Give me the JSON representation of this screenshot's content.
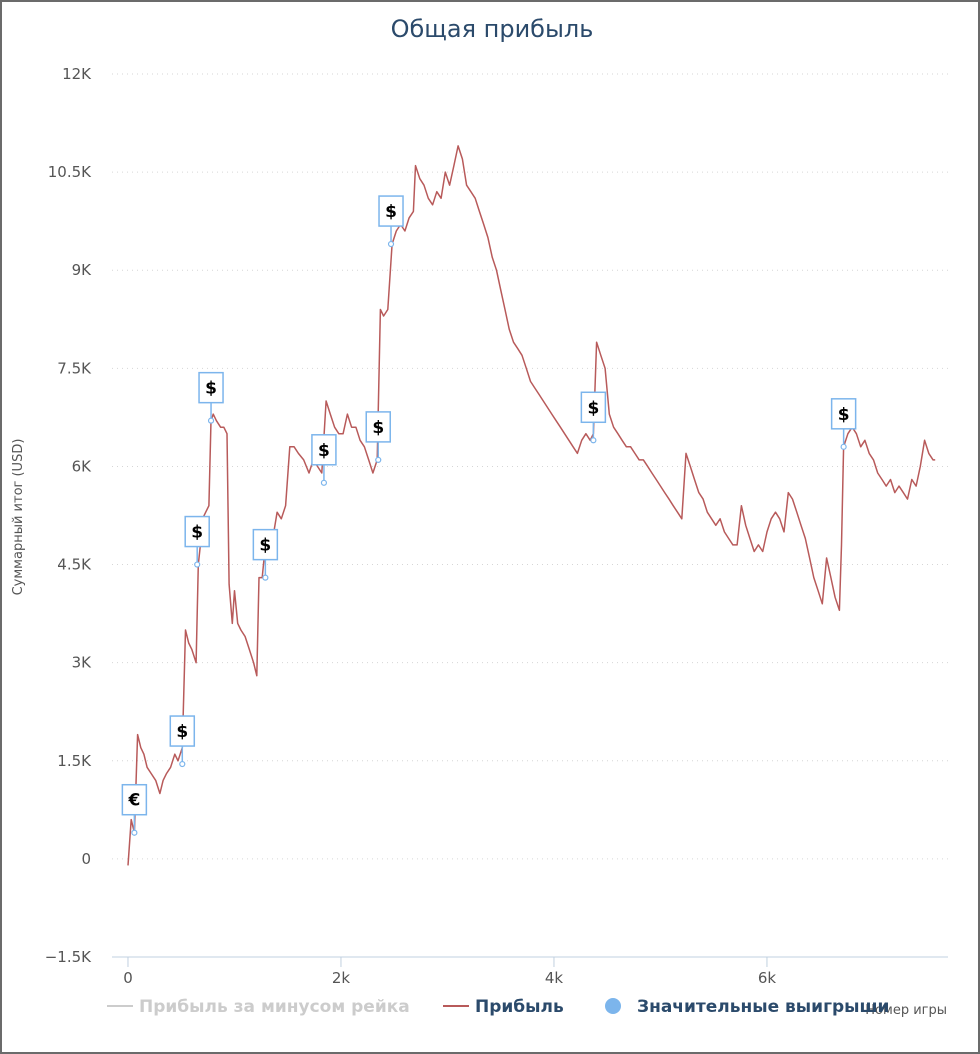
{
  "chart_data": {
    "type": "line",
    "title": "Общая прибыль",
    "xlabel": "Номер игры",
    "ylabel": "Суммарный итог (USD)",
    "xlim": [
      -150,
      7700
    ],
    "ylim": [
      -1500,
      12000
    ],
    "x_ticks": [
      {
        "value": 0,
        "label": "0"
      },
      {
        "value": 2000,
        "label": "2k"
      },
      {
        "value": 4000,
        "label": "4k"
      },
      {
        "value": 6000,
        "label": "6k"
      }
    ],
    "y_ticks": [
      {
        "value": -1500,
        "label": "−1.5K"
      },
      {
        "value": 0,
        "label": "0"
      },
      {
        "value": 1500,
        "label": "1.5K"
      },
      {
        "value": 3000,
        "label": "3K"
      },
      {
        "value": 4500,
        "label": "4.5K"
      },
      {
        "value": 6000,
        "label": "6K"
      },
      {
        "value": 7500,
        "label": "7.5K"
      },
      {
        "value": 9000,
        "label": "9K"
      },
      {
        "value": 10500,
        "label": "10.5K"
      },
      {
        "value": 12000,
        "label": "12K"
      }
    ],
    "grid": "horizontal-dotted",
    "legend_position": "bottom",
    "series": [
      {
        "name": "Прибыль за минусом рейка",
        "color": "#cccccc",
        "visible": false,
        "points": []
      },
      {
        "name": "Прибыль",
        "color": "#b85a5a",
        "points": [
          [
            0,
            -100
          ],
          [
            30,
            600
          ],
          [
            60,
            400
          ],
          [
            90,
            1900
          ],
          [
            120,
            1700
          ],
          [
            150,
            1600
          ],
          [
            180,
            1400
          ],
          [
            220,
            1300
          ],
          [
            260,
            1200
          ],
          [
            300,
            1000
          ],
          [
            330,
            1200
          ],
          [
            360,
            1300
          ],
          [
            400,
            1400
          ],
          [
            440,
            1600
          ],
          [
            470,
            1500
          ],
          [
            510,
            1700
          ],
          [
            540,
            3500
          ],
          [
            570,
            3300
          ],
          [
            600,
            3200
          ],
          [
            640,
            3000
          ],
          [
            660,
            4500
          ],
          [
            680,
            4800
          ],
          [
            700,
            5200
          ],
          [
            730,
            5300
          ],
          [
            760,
            5400
          ],
          [
            780,
            6700
          ],
          [
            800,
            6800
          ],
          [
            830,
            6700
          ],
          [
            870,
            6600
          ],
          [
            900,
            6600
          ],
          [
            930,
            6500
          ],
          [
            950,
            4200
          ],
          [
            980,
            3600
          ],
          [
            1000,
            4100
          ],
          [
            1030,
            3600
          ],
          [
            1060,
            3500
          ],
          [
            1100,
            3400
          ],
          [
            1140,
            3200
          ],
          [
            1180,
            3000
          ],
          [
            1210,
            2800
          ],
          [
            1230,
            4300
          ],
          [
            1260,
            4300
          ],
          [
            1290,
            4800
          ],
          [
            1320,
            5000
          ],
          [
            1360,
            4900
          ],
          [
            1400,
            5300
          ],
          [
            1440,
            5200
          ],
          [
            1480,
            5400
          ],
          [
            1520,
            6300
          ],
          [
            1560,
            6300
          ],
          [
            1600,
            6200
          ],
          [
            1650,
            6100
          ],
          [
            1700,
            5900
          ],
          [
            1740,
            6100
          ],
          [
            1780,
            6000
          ],
          [
            1820,
            5900
          ],
          [
            1860,
            7000
          ],
          [
            1900,
            6800
          ],
          [
            1940,
            6600
          ],
          [
            1980,
            6500
          ],
          [
            2020,
            6500
          ],
          [
            2060,
            6800
          ],
          [
            2100,
            6600
          ],
          [
            2140,
            6600
          ],
          [
            2180,
            6400
          ],
          [
            2220,
            6300
          ],
          [
            2260,
            6100
          ],
          [
            2300,
            5900
          ],
          [
            2340,
            6100
          ],
          [
            2370,
            8400
          ],
          [
            2400,
            8300
          ],
          [
            2440,
            8400
          ],
          [
            2480,
            9400
          ],
          [
            2520,
            9600
          ],
          [
            2560,
            9700
          ],
          [
            2600,
            9600
          ],
          [
            2640,
            9800
          ],
          [
            2680,
            9900
          ],
          [
            2700,
            10600
          ],
          [
            2740,
            10400
          ],
          [
            2780,
            10300
          ],
          [
            2820,
            10100
          ],
          [
            2860,
            10000
          ],
          [
            2900,
            10200
          ],
          [
            2940,
            10100
          ],
          [
            2980,
            10500
          ],
          [
            3020,
            10300
          ],
          [
            3060,
            10600
          ],
          [
            3100,
            10900
          ],
          [
            3140,
            10700
          ],
          [
            3180,
            10300
          ],
          [
            3220,
            10200
          ],
          [
            3260,
            10100
          ],
          [
            3300,
            9900
          ],
          [
            3340,
            9700
          ],
          [
            3380,
            9500
          ],
          [
            3420,
            9200
          ],
          [
            3460,
            9000
          ],
          [
            3500,
            8700
          ],
          [
            3540,
            8400
          ],
          [
            3580,
            8100
          ],
          [
            3620,
            7900
          ],
          [
            3660,
            7800
          ],
          [
            3700,
            7700
          ],
          [
            3740,
            7500
          ],
          [
            3780,
            7300
          ],
          [
            3820,
            7200
          ],
          [
            3860,
            7100
          ],
          [
            3900,
            7000
          ],
          [
            3940,
            6900
          ],
          [
            3980,
            6800
          ],
          [
            4020,
            6700
          ],
          [
            4060,
            6600
          ],
          [
            4100,
            6500
          ],
          [
            4140,
            6400
          ],
          [
            4180,
            6300
          ],
          [
            4220,
            6200
          ],
          [
            4260,
            6400
          ],
          [
            4300,
            6500
          ],
          [
            4340,
            6400
          ],
          [
            4370,
            6500
          ],
          [
            4400,
            7900
          ],
          [
            4440,
            7700
          ],
          [
            4480,
            7500
          ],
          [
            4520,
            6800
          ],
          [
            4560,
            6600
          ],
          [
            4600,
            6500
          ],
          [
            4640,
            6400
          ],
          [
            4680,
            6300
          ],
          [
            4720,
            6300
          ],
          [
            4760,
            6200
          ],
          [
            4800,
            6100
          ],
          [
            4840,
            6100
          ],
          [
            4880,
            6000
          ],
          [
            4920,
            5900
          ],
          [
            4960,
            5800
          ],
          [
            5000,
            5700
          ],
          [
            5040,
            5600
          ],
          [
            5080,
            5500
          ],
          [
            5120,
            5400
          ],
          [
            5160,
            5300
          ],
          [
            5200,
            5200
          ],
          [
            5240,
            6200
          ],
          [
            5280,
            6000
          ],
          [
            5320,
            5800
          ],
          [
            5360,
            5600
          ],
          [
            5400,
            5500
          ],
          [
            5440,
            5300
          ],
          [
            5480,
            5200
          ],
          [
            5520,
            5100
          ],
          [
            5560,
            5200
          ],
          [
            5600,
            5000
          ],
          [
            5640,
            4900
          ],
          [
            5680,
            4800
          ],
          [
            5720,
            4800
          ],
          [
            5760,
            5400
          ],
          [
            5800,
            5100
          ],
          [
            5840,
            4900
          ],
          [
            5880,
            4700
          ],
          [
            5920,
            4800
          ],
          [
            5960,
            4700
          ],
          [
            6000,
            5000
          ],
          [
            6040,
            5200
          ],
          [
            6080,
            5300
          ],
          [
            6120,
            5200
          ],
          [
            6160,
            5000
          ],
          [
            6200,
            5600
          ],
          [
            6240,
            5500
          ],
          [
            6280,
            5300
          ],
          [
            6320,
            5100
          ],
          [
            6360,
            4900
          ],
          [
            6400,
            4600
          ],
          [
            6440,
            4300
          ],
          [
            6480,
            4100
          ],
          [
            6520,
            3900
          ],
          [
            6560,
            4600
          ],
          [
            6600,
            4300
          ],
          [
            6640,
            4000
          ],
          [
            6680,
            3800
          ],
          [
            6700,
            4800
          ],
          [
            6720,
            6300
          ],
          [
            6760,
            6500
          ],
          [
            6800,
            6600
          ],
          [
            6840,
            6500
          ],
          [
            6880,
            6300
          ],
          [
            6920,
            6400
          ],
          [
            6960,
            6200
          ],
          [
            7000,
            6100
          ],
          [
            7040,
            5900
          ],
          [
            7080,
            5800
          ],
          [
            7120,
            5700
          ],
          [
            7160,
            5800
          ],
          [
            7200,
            5600
          ],
          [
            7240,
            5700
          ],
          [
            7280,
            5600
          ],
          [
            7320,
            5500
          ],
          [
            7360,
            5800
          ],
          [
            7400,
            5700
          ],
          [
            7440,
            6000
          ],
          [
            7480,
            6400
          ],
          [
            7520,
            6200
          ],
          [
            7560,
            6100
          ],
          [
            7580,
            6100
          ]
        ]
      },
      {
        "name": "Значительные выигрыши",
        "color": "#7cb5ec",
        "type": "flags",
        "points": [
          {
            "x": 60,
            "y": 400,
            "label": "€"
          },
          {
            "x": 510,
            "y": 1450,
            "label": "$"
          },
          {
            "x": 650,
            "y": 4500,
            "label": "$"
          },
          {
            "x": 780,
            "y": 6700,
            "label": "$"
          },
          {
            "x": 1290,
            "y": 4300,
            "label": "$"
          },
          {
            "x": 1840,
            "y": 5750,
            "label": "$"
          },
          {
            "x": 2350,
            "y": 6100,
            "label": "$"
          },
          {
            "x": 2470,
            "y": 9400,
            "label": "$"
          },
          {
            "x": 4370,
            "y": 6400,
            "label": "$"
          },
          {
            "x": 6720,
            "y": 6300,
            "label": "$"
          }
        ]
      }
    ]
  }
}
